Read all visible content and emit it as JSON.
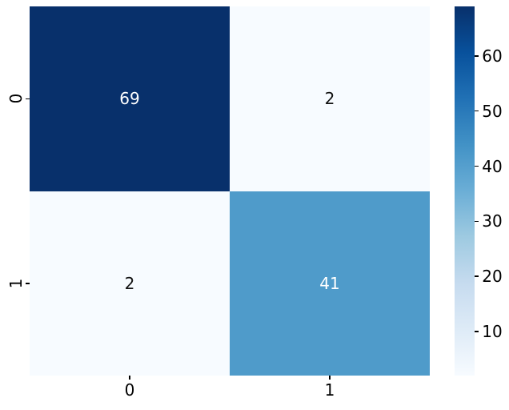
{
  "figure": {
    "background": "#ffffff",
    "tick_color": "#000000"
  },
  "chart_data": {
    "type": "heatmap",
    "title": "",
    "xlabel": "",
    "ylabel": "",
    "x_tick_labels": [
      "0",
      "1"
    ],
    "y_tick_labels": [
      "0",
      "1"
    ],
    "matrix": [
      [
        69,
        2
      ],
      [
        2,
        41
      ]
    ],
    "cells": [
      {
        "row": 0,
        "col": 0,
        "value": 69,
        "label": "69",
        "bg": "#08306b",
        "fg": "#ffffff"
      },
      {
        "row": 0,
        "col": 1,
        "value": 2,
        "label": "2",
        "bg": "#f7fbff",
        "fg": "#111111"
      },
      {
        "row": 1,
        "col": 0,
        "value": 2,
        "label": "2",
        "bg": "#f7fbff",
        "fg": "#111111"
      },
      {
        "row": 1,
        "col": 1,
        "value": 41,
        "label": "41",
        "bg": "#4f9bca",
        "fg": "#ffffff"
      }
    ],
    "colormap": "Blues",
    "vmin": 2,
    "vmax": 69,
    "grid": false,
    "legend": null,
    "colorbar": {
      "position": "right",
      "ticks": [
        "10",
        "20",
        "30",
        "40",
        "50",
        "60"
      ],
      "tick_values": [
        10,
        20,
        30,
        40,
        50,
        60
      ],
      "gradient_stops": [
        {
          "pos": 0.0,
          "color": "#08306b"
        },
        {
          "pos": 0.125,
          "color": "#08519c"
        },
        {
          "pos": 0.25,
          "color": "#2171b5"
        },
        {
          "pos": 0.375,
          "color": "#4292c6"
        },
        {
          "pos": 0.5,
          "color": "#6baed6"
        },
        {
          "pos": 0.625,
          "color": "#9ecae1"
        },
        {
          "pos": 0.75,
          "color": "#c6dbef"
        },
        {
          "pos": 0.875,
          "color": "#deebf7"
        },
        {
          "pos": 1.0,
          "color": "#f7fbff"
        }
      ]
    }
  }
}
